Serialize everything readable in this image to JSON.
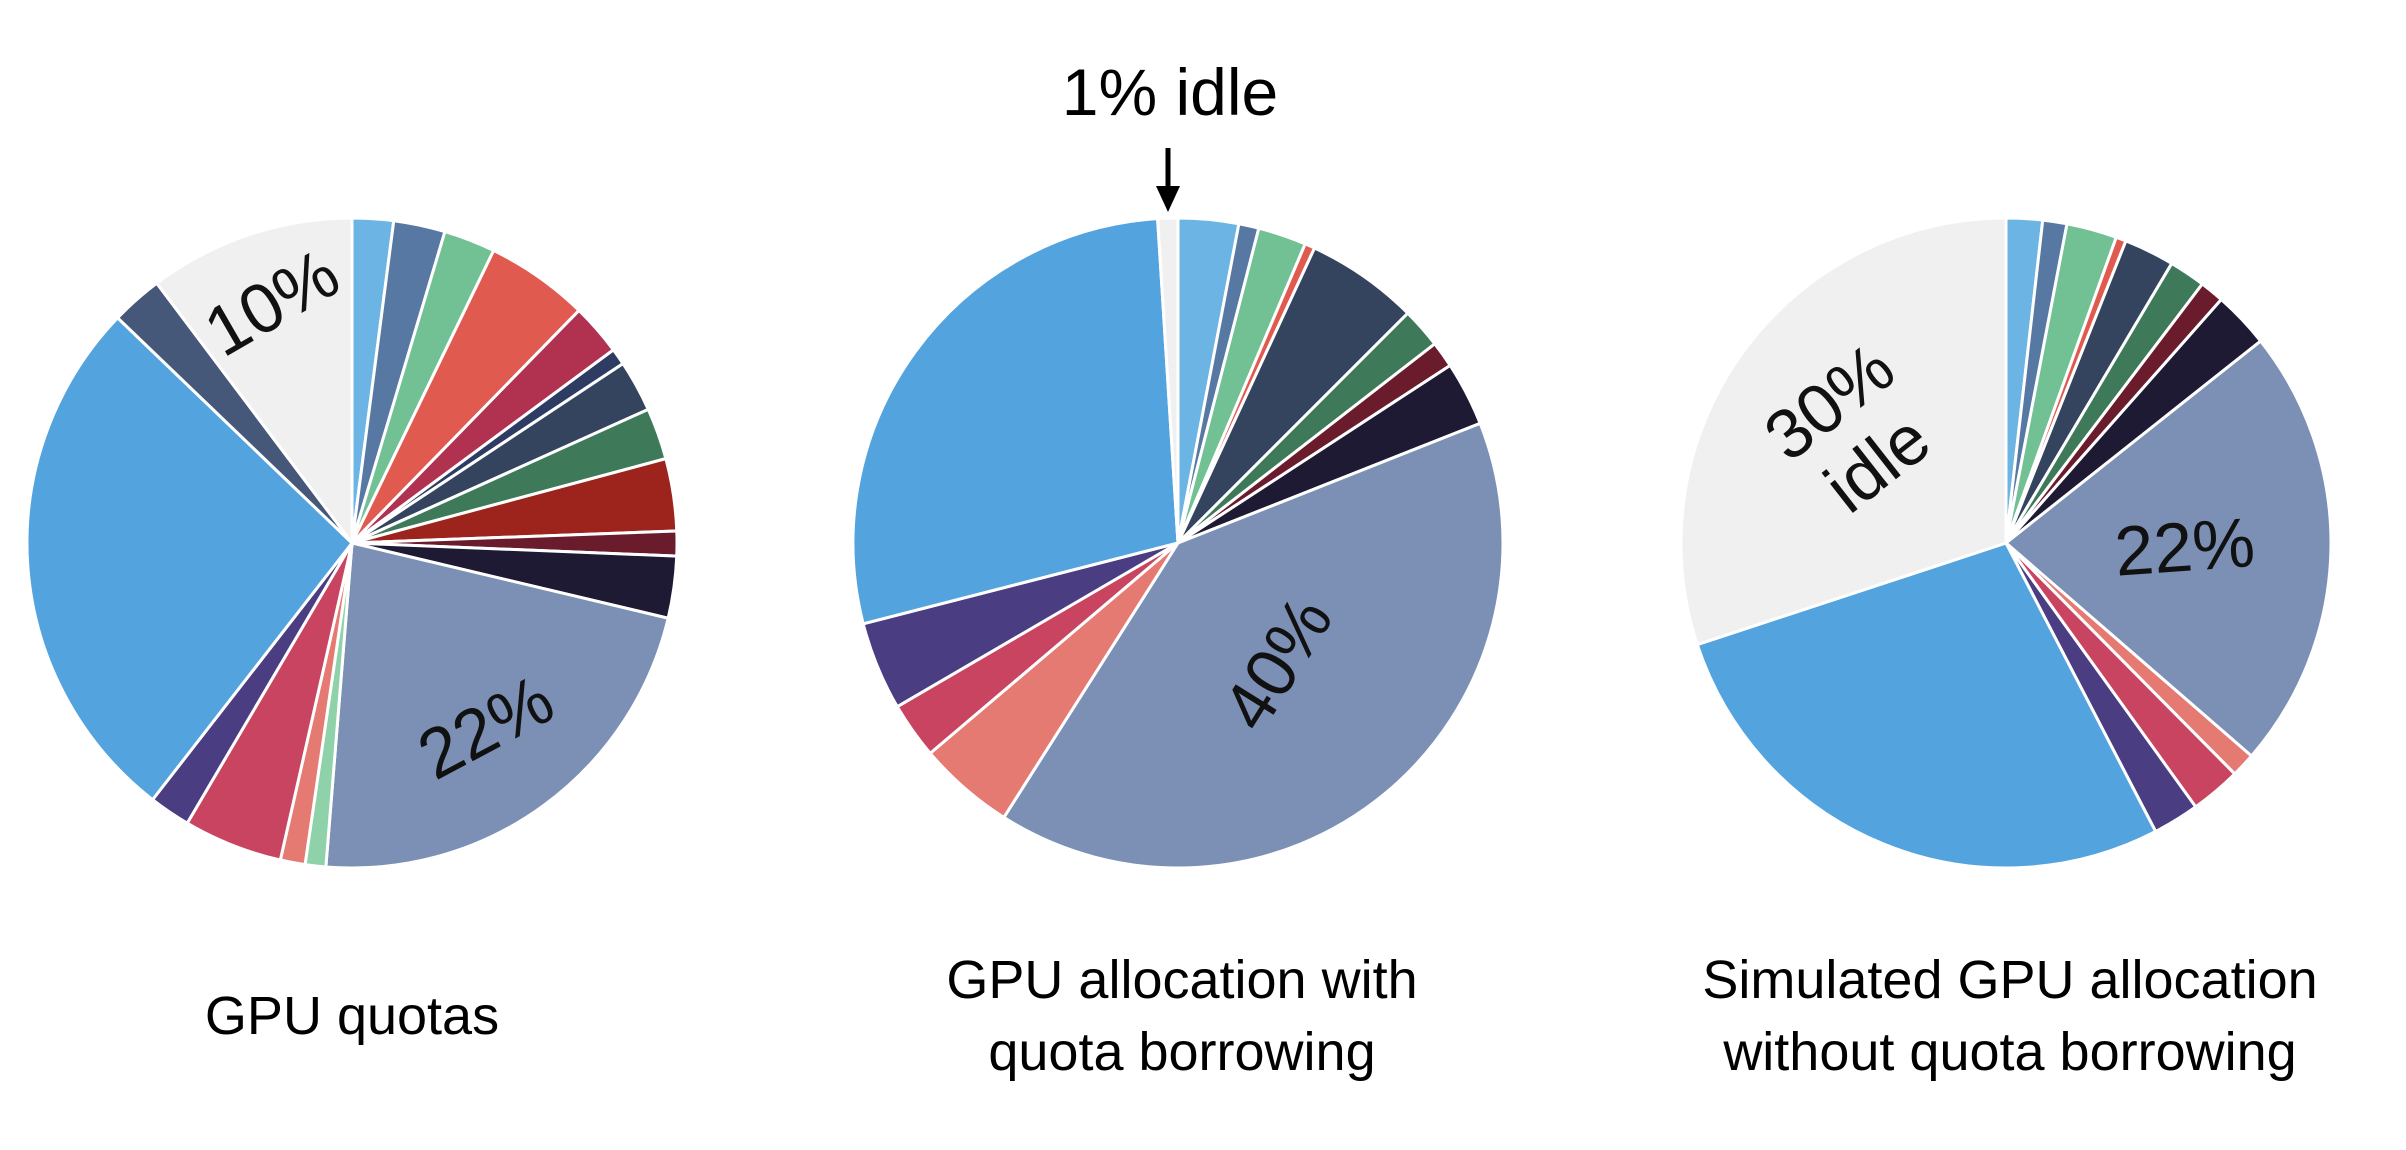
{
  "chart_data": [
    {
      "type": "pie",
      "title_lines": [
        "GPU quotas"
      ],
      "slices": [
        {
          "value": 2.0,
          "color": "#6cb4e4"
        },
        {
          "value": 2.5,
          "color": "#5878a4"
        },
        {
          "value": 2.5,
          "color": "#72c195"
        },
        {
          "value": 5.0,
          "color": "#e15a4f"
        },
        {
          "value": 2.5,
          "color": "#b03150"
        },
        {
          "value": 0.8,
          "color": "#2e3b63"
        },
        {
          "value": 2.5,
          "color": "#34445e"
        },
        {
          "value": 2.5,
          "color": "#3e7a5a"
        },
        {
          "value": 3.5,
          "color": "#9d231d"
        },
        {
          "value": 1.2,
          "color": "#6a1c2d"
        },
        {
          "value": 3.0,
          "color": "#1f1a33"
        },
        {
          "value": 22.0,
          "color": "#7b90b4",
          "label": "22%"
        },
        {
          "value": 1.0,
          "color": "#8fd1a8"
        },
        {
          "value": 1.2,
          "color": "#e57a73"
        },
        {
          "value": 4.8,
          "color": "#c94460"
        },
        {
          "value": 2.0,
          "color": "#4a3d82"
        },
        {
          "value": 26.0,
          "color": "#52a3de"
        },
        {
          "value": 2.5,
          "color": "#46587a"
        },
        {
          "value": 10.0,
          "color": "#f0f0f0",
          "label": "10%"
        }
      ]
    },
    {
      "type": "pie",
      "title_lines": [
        "GPU allocation with",
        "quota borrowing"
      ],
      "annotation": "1% idle",
      "slices": [
        {
          "value": 3.0,
          "color": "#6cb4e4"
        },
        {
          "value": 1.0,
          "color": "#5878a4"
        },
        {
          "value": 2.4,
          "color": "#72c195"
        },
        {
          "value": 0.5,
          "color": "#e15a4f"
        },
        {
          "value": 5.6,
          "color": "#34445e"
        },
        {
          "value": 2.0,
          "color": "#3e7a5a"
        },
        {
          "value": 1.3,
          "color": "#6a1c2d"
        },
        {
          "value": 3.2,
          "color": "#1f1a33"
        },
        {
          "value": 40.0,
          "color": "#7b90b4",
          "label": "40%"
        },
        {
          "value": 4.8,
          "color": "#e57a73"
        },
        {
          "value": 2.8,
          "color": "#c94460"
        },
        {
          "value": 4.4,
          "color": "#4a3d82"
        },
        {
          "value": 28.0,
          "color": "#52a3de"
        },
        {
          "value": 1.0,
          "color": "#f0f0f0"
        }
      ]
    },
    {
      "type": "pie",
      "title_lines": [
        "Simulated GPU allocation",
        "without quota borrowing"
      ],
      "slices": [
        {
          "value": 1.8,
          "color": "#6cb4e4"
        },
        {
          "value": 1.2,
          "color": "#5878a4"
        },
        {
          "value": 2.5,
          "color": "#72c195"
        },
        {
          "value": 0.5,
          "color": "#e15a4f"
        },
        {
          "value": 2.5,
          "color": "#34445e"
        },
        {
          "value": 1.8,
          "color": "#3e7a5a"
        },
        {
          "value": 1.2,
          "color": "#6a1c2d"
        },
        {
          "value": 2.8,
          "color": "#1f1a33"
        },
        {
          "value": 22.0,
          "color": "#7b90b4",
          "label": "22%"
        },
        {
          "value": 1.2,
          "color": "#e57a73"
        },
        {
          "value": 2.5,
          "color": "#c94460"
        },
        {
          "value": 2.3,
          "color": "#4a3d82"
        },
        {
          "value": 27.5,
          "color": "#52a3de"
        },
        {
          "value": 30.0,
          "color": "#f0f0f0",
          "label_lines": [
            "30%",
            "idle"
          ]
        }
      ]
    }
  ]
}
